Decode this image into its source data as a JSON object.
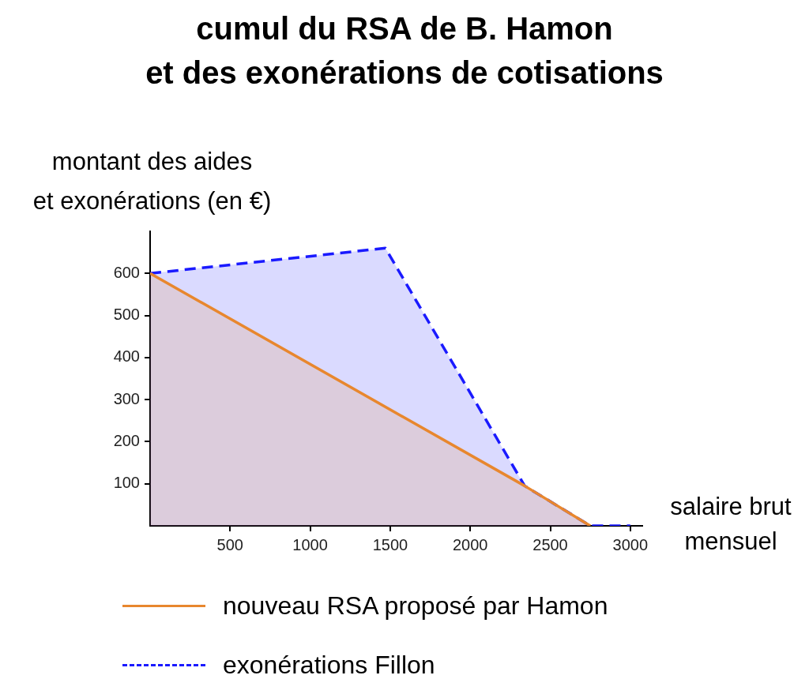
{
  "chart_data": {
    "type": "area",
    "title": "cumul du RSA de B. Hamon\net des exonérations de cotisations",
    "xlabel": "salaire brut\nmensuel",
    "ylabel": "montant des aides\net exonérations (en €)",
    "xlim": [
      0,
      3075
    ],
    "xticks": [
      500,
      1000,
      1500,
      2000,
      2500,
      3000
    ],
    "ylim": [
      0,
      700
    ],
    "yticks": [
      100,
      200,
      300,
      400,
      500,
      600
    ],
    "grid": false,
    "legend": "bottom",
    "marker": "none",
    "series": [
      {
        "name": "exonérations Fillon",
        "color": "#1a1aff",
        "line_style": "dashed",
        "x": [
          0,
          1470,
          2340,
          2750,
          3000
        ],
        "values": [
          600,
          660,
          95,
          0,
          0
        ]
      },
      {
        "name": "nouveau RSA proposé par Hamon",
        "color": "#e8872e",
        "line_style": "solid",
        "x": [
          0,
          2340,
          2750
        ],
        "values": [
          600,
          95,
          0
        ]
      }
    ]
  }
}
